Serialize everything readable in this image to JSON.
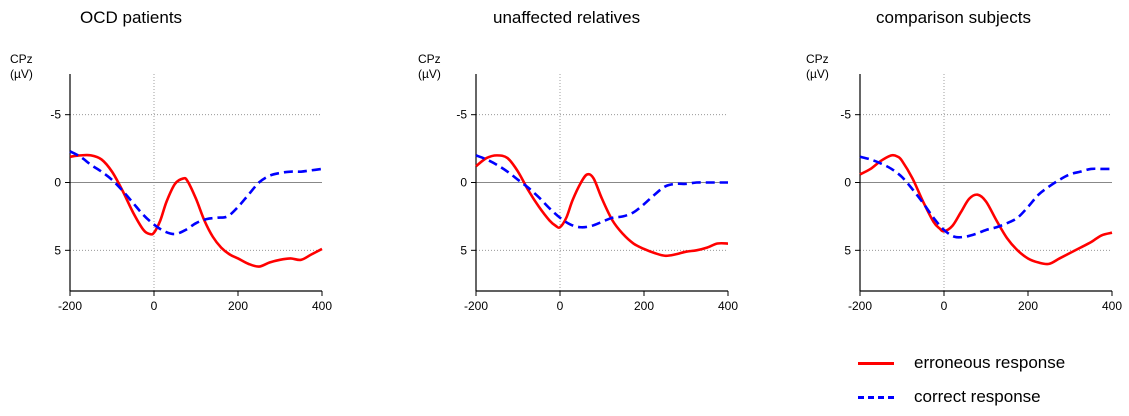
{
  "legend": {
    "items": [
      {
        "label": "erroneous response",
        "color": "#ff0000",
        "style": "solid"
      },
      {
        "label": "correct response",
        "color": "#0000ff",
        "style": "dashed"
      }
    ]
  },
  "chart_data": [
    {
      "type": "line",
      "title": "OCD patients",
      "ylabel_line1": "CPz",
      "ylabel_line2": "(µV)",
      "xlim": [
        -200,
        400
      ],
      "ylim": [
        -8,
        8
      ],
      "y_inverted": true,
      "xticks": [
        -200,
        0,
        200,
        400
      ],
      "yticks": [
        -5,
        0,
        5
      ],
      "grid": "dotted at y=-5, y=5 and x=0; solid zero line",
      "series": [
        {
          "name": "erroneous response",
          "color": "#ff0000",
          "style": "solid",
          "x": [
            -200,
            -175,
            -150,
            -125,
            -100,
            -75,
            -50,
            -25,
            -10,
            0,
            15,
            30,
            50,
            70,
            80,
            100,
            120,
            140,
            160,
            180,
            200,
            225,
            250,
            275,
            300,
            325,
            350,
            375,
            400
          ],
          "y": [
            -1.9,
            -2.0,
            -2.0,
            -1.7,
            -0.8,
            0.6,
            2.2,
            3.5,
            3.8,
            3.7,
            2.8,
            1.4,
            0.1,
            -0.3,
            -0.1,
            1.2,
            2.8,
            4.0,
            4.8,
            5.3,
            5.6,
            6.0,
            6.2,
            5.9,
            5.7,
            5.6,
            5.7,
            5.3,
            4.9
          ]
        },
        {
          "name": "correct response",
          "color": "#0000ff",
          "style": "dashed",
          "x": [
            -200,
            -175,
            -150,
            -125,
            -100,
            -75,
            -50,
            -25,
            0,
            25,
            50,
            75,
            100,
            125,
            150,
            175,
            200,
            225,
            250,
            275,
            300,
            325,
            350,
            375,
            400
          ],
          "y": [
            -2.3,
            -1.9,
            -1.3,
            -0.8,
            -0.2,
            0.6,
            1.5,
            2.4,
            3.1,
            3.6,
            3.8,
            3.5,
            3.0,
            2.7,
            2.6,
            2.5,
            1.8,
            0.9,
            0.0,
            -0.5,
            -0.7,
            -0.8,
            -0.8,
            -0.9,
            -1.0
          ]
        }
      ]
    },
    {
      "type": "line",
      "title": "unaffected relatives",
      "ylabel_line1": "CPz",
      "ylabel_line2": "(µV)",
      "xlim": [
        -200,
        400
      ],
      "ylim": [
        -8,
        8
      ],
      "y_inverted": true,
      "xticks": [
        -200,
        0,
        200,
        400
      ],
      "yticks": [
        -5,
        0,
        5
      ],
      "grid": "dotted at y=-5, y=5 and x=0; solid zero line",
      "series": [
        {
          "name": "erroneous response",
          "color": "#ff0000",
          "style": "solid",
          "x": [
            -200,
            -175,
            -150,
            -125,
            -100,
            -75,
            -50,
            -25,
            -10,
            0,
            15,
            30,
            50,
            65,
            80,
            100,
            125,
            150,
            175,
            200,
            225,
            250,
            275,
            300,
            325,
            350,
            375,
            400
          ],
          "y": [
            -1.2,
            -1.8,
            -2.0,
            -1.8,
            -0.8,
            0.6,
            1.8,
            2.8,
            3.2,
            3.3,
            2.6,
            1.3,
            0.0,
            -0.6,
            -0.3,
            1.2,
            2.8,
            3.8,
            4.5,
            4.9,
            5.2,
            5.4,
            5.3,
            5.1,
            5.0,
            4.8,
            4.5,
            4.5
          ]
        },
        {
          "name": "correct response",
          "color": "#0000ff",
          "style": "dashed",
          "x": [
            -200,
            -175,
            -150,
            -125,
            -100,
            -75,
            -50,
            -25,
            0,
            25,
            50,
            75,
            100,
            125,
            150,
            175,
            200,
            225,
            250,
            275,
            300,
            325,
            350,
            375,
            400
          ],
          "y": [
            -2.0,
            -1.7,
            -1.3,
            -0.8,
            -0.2,
            0.4,
            1.1,
            1.9,
            2.6,
            3.1,
            3.3,
            3.2,
            2.9,
            2.6,
            2.5,
            2.2,
            1.6,
            0.9,
            0.3,
            0.1,
            0.1,
            0.0,
            0.0,
            0.0,
            0.0
          ]
        }
      ]
    },
    {
      "type": "line",
      "title": "comparison subjects",
      "ylabel_line1": "CPz",
      "ylabel_line2": "(µV)",
      "xlim": [
        -200,
        400
      ],
      "ylim": [
        -8,
        8
      ],
      "y_inverted": true,
      "xticks": [
        -200,
        0,
        200,
        400
      ],
      "yticks": [
        -5,
        0,
        5
      ],
      "grid": "dotted at y=-5, y=5 and x=0; solid zero line",
      "series": [
        {
          "name": "erroneous response",
          "color": "#ff0000",
          "style": "solid",
          "x": [
            -200,
            -175,
            -150,
            -125,
            -110,
            -100,
            -75,
            -50,
            -25,
            -10,
            0,
            20,
            40,
            60,
            80,
            100,
            125,
            150,
            175,
            200,
            225,
            250,
            275,
            300,
            325,
            350,
            375,
            400
          ],
          "y": [
            -0.6,
            -1.0,
            -1.6,
            -2.0,
            -1.9,
            -1.6,
            -0.3,
            1.4,
            2.9,
            3.4,
            3.6,
            3.2,
            2.2,
            1.2,
            0.9,
            1.4,
            2.8,
            4.1,
            5.0,
            5.6,
            5.9,
            6.0,
            5.6,
            5.2,
            4.8,
            4.4,
            3.9,
            3.7
          ]
        },
        {
          "name": "correct response",
          "color": "#0000ff",
          "style": "dashed",
          "x": [
            -200,
            -175,
            -150,
            -125,
            -100,
            -75,
            -50,
            -25,
            0,
            25,
            50,
            75,
            100,
            125,
            150,
            175,
            200,
            225,
            250,
            275,
            300,
            325,
            350,
            375,
            400
          ],
          "y": [
            -1.9,
            -1.7,
            -1.4,
            -1.0,
            -0.4,
            0.5,
            1.5,
            2.6,
            3.5,
            4.0,
            4.0,
            3.8,
            3.5,
            3.3,
            3.0,
            2.6,
            1.8,
            0.9,
            0.3,
            -0.2,
            -0.6,
            -0.8,
            -1.0,
            -1.0,
            -1.0
          ]
        }
      ]
    }
  ]
}
